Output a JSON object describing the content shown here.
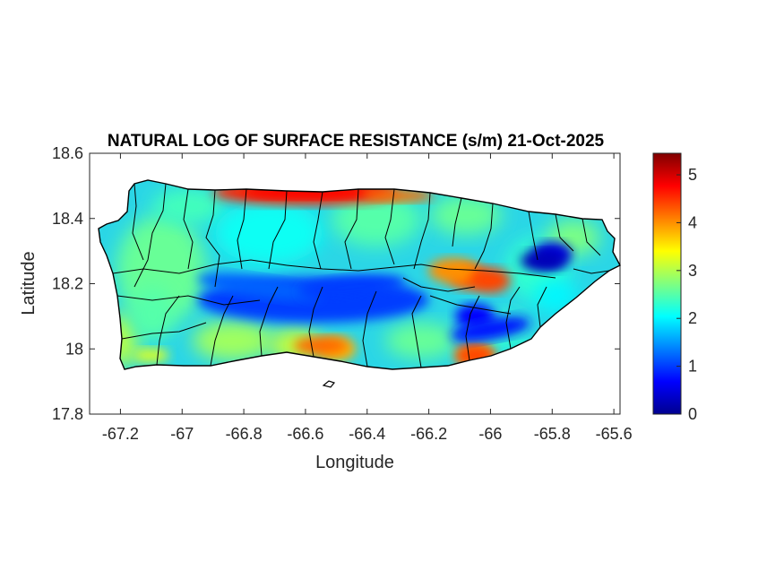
{
  "chart_data": {
    "type": "heatmap",
    "title": "NATURAL LOG OF SURFACE RESISTANCE (s/m) 21-Oct-2025",
    "xlabel": "Longitude",
    "ylabel": "Latitude",
    "xlim": [
      -67.3,
      -65.58
    ],
    "ylim": [
      17.8,
      18.6
    ],
    "xticks": [
      -67.2,
      -67,
      -66.8,
      -66.6,
      -66.4,
      -66.2,
      -66,
      -65.8,
      -65.6
    ],
    "yticks": [
      17.8,
      18,
      18.2,
      18.4,
      18.6
    ],
    "colorbar": {
      "colormap": "jet",
      "range": [
        0,
        5.45
      ],
      "ticks": [
        0,
        1,
        2,
        3,
        4,
        5
      ]
    },
    "features": [
      {
        "name": "central-mountain-low-band",
        "lon": [
          -66.95,
          -66.2
        ],
        "lat": [
          18.08,
          18.22
        ],
        "value": 1.0
      },
      {
        "name": "northeast-low-zone",
        "lon": -65.8,
        "lat": 18.29,
        "value": 0.5
      },
      {
        "name": "southeast-low-zone",
        "lon": -66.05,
        "lat": 18.1,
        "value": 0.7
      },
      {
        "name": "east-central-high-zone",
        "lon": -66.07,
        "lat": 18.22,
        "value": 4.3
      },
      {
        "name": "north-coast-high-strip",
        "lon": [
          -66.9,
          -66.3
        ],
        "lat": 18.48,
        "value": 4.6
      },
      {
        "name": "south-coast-warm-patch",
        "lon": -66.5,
        "lat": 18.0,
        "value": 3.8
      },
      {
        "name": "southeast-coast-high-patch",
        "lon": -66.05,
        "lat": 17.98,
        "value": 4.1
      }
    ]
  }
}
